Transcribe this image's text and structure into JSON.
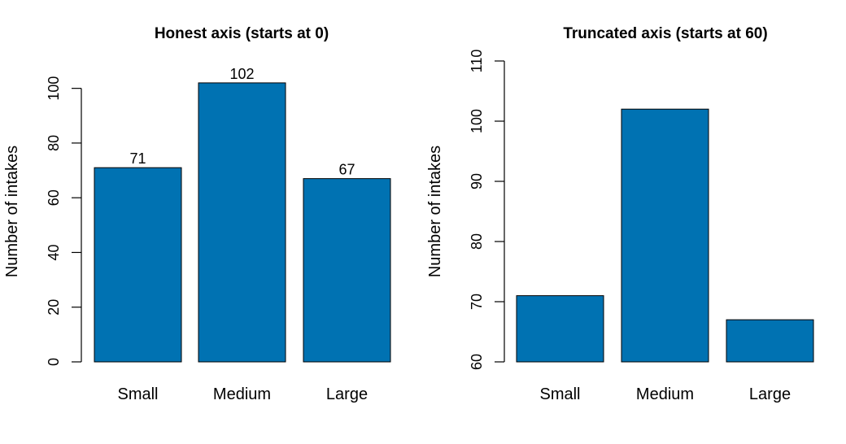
{
  "chart_data": [
    {
      "type": "bar",
      "title": "Honest axis (starts at 0)",
      "ylabel": "Number of intakes",
      "categories": [
        "Small",
        "Medium",
        "Large"
      ],
      "values": [
        71,
        102,
        67
      ],
      "data_labels": [
        "71",
        "102",
        "67"
      ],
      "ylim": [
        0,
        110
      ],
      "yticks": [
        0,
        20,
        40,
        60,
        80,
        100
      ],
      "bar_color": "#0072b2",
      "grid": false
    },
    {
      "type": "bar",
      "title": "Truncated axis (starts at 60)",
      "ylabel": "Number of intakes",
      "categories": [
        "Small",
        "Medium",
        "Large"
      ],
      "values": [
        71,
        102,
        67
      ],
      "ylim": [
        60,
        110
      ],
      "yticks": [
        60,
        70,
        80,
        90,
        100,
        110
      ],
      "bar_color": "#0072b2",
      "grid": false
    }
  ]
}
